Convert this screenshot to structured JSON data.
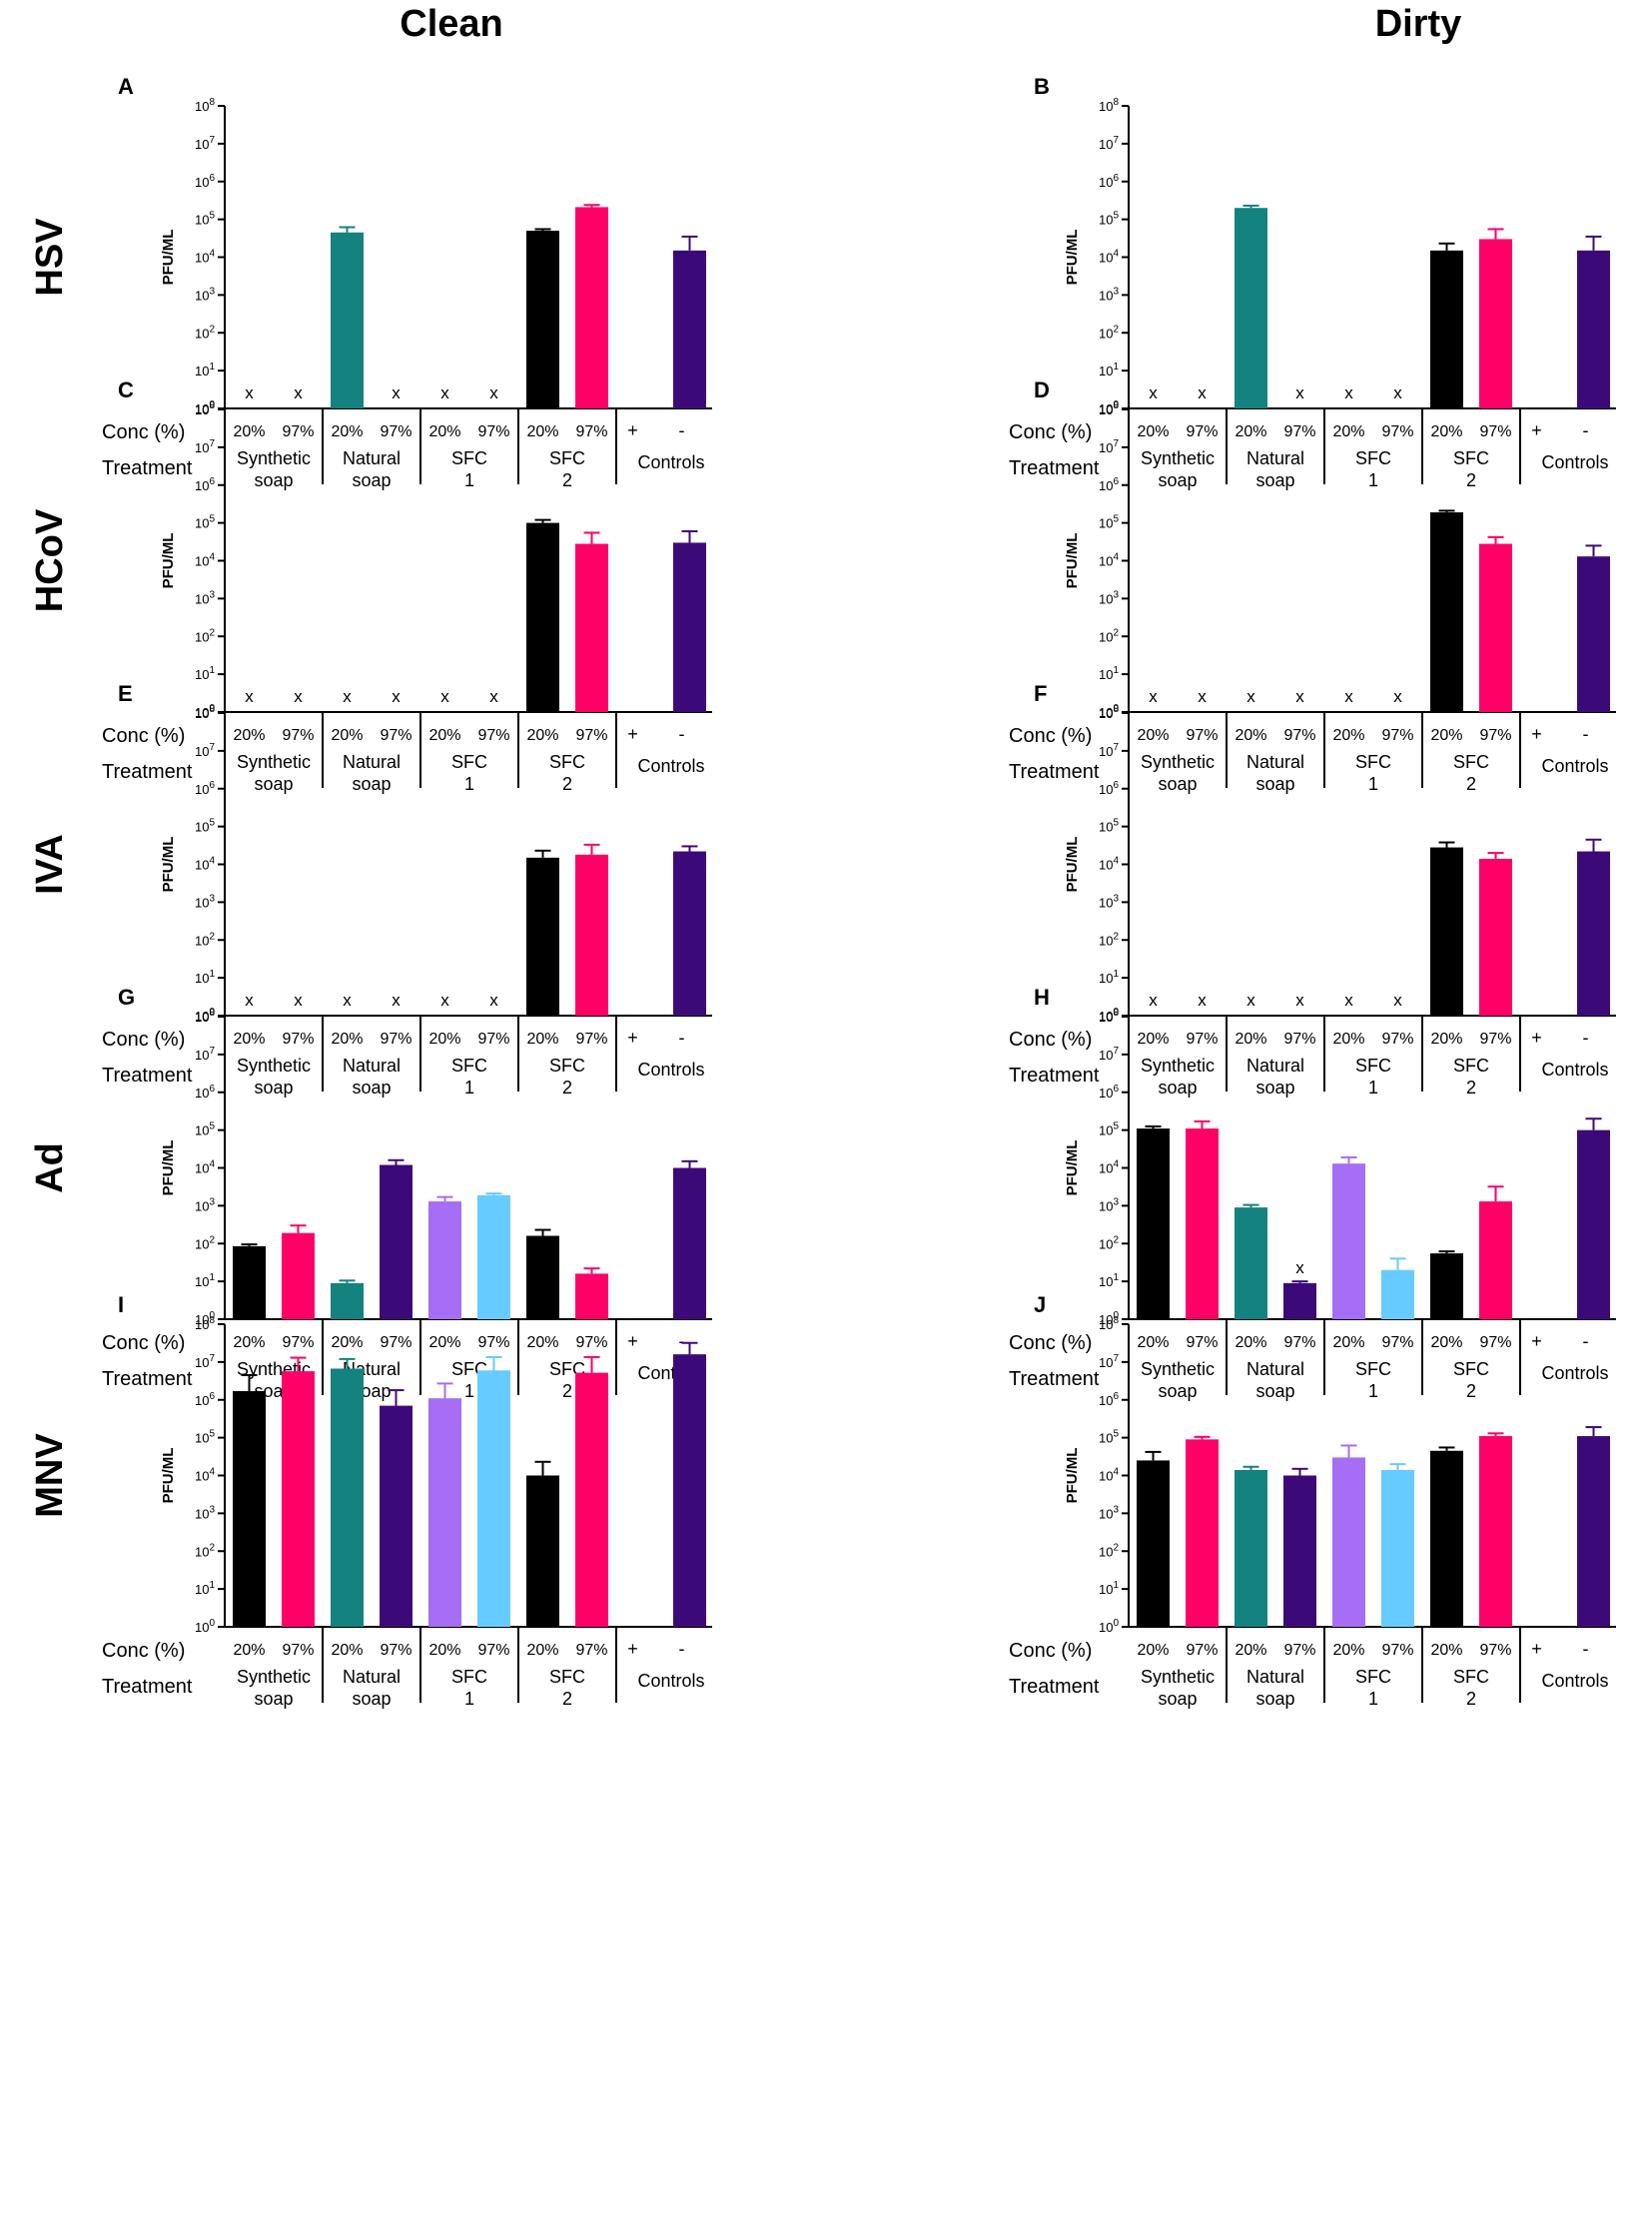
{
  "columns": [
    "Clean",
    "Dirty"
  ],
  "rows": [
    "HSV",
    "HCoV",
    "IVA",
    "Ad",
    "MNV"
  ],
  "row_labels_text": {
    "conc": "Conc (%)",
    "treatment": "Treatment"
  },
  "y_axis": {
    "label": "PFU/ML",
    "log_min": 0,
    "log_max": 8,
    "ticks": [
      "10^0",
      "10^1",
      "10^2",
      "10^3",
      "10^4",
      "10^5",
      "10^6",
      "10^7",
      "10^8"
    ]
  },
  "bar_groups": [
    {
      "conc": [
        "20%",
        "97%"
      ],
      "treatment_lines": [
        "Synthetic",
        "soap"
      ]
    },
    {
      "conc": [
        "20%",
        "97%"
      ],
      "treatment_lines": [
        "Natural",
        "soap"
      ]
    },
    {
      "conc": [
        "20%",
        "97%"
      ],
      "treatment_lines": [
        "SFC",
        "1"
      ]
    },
    {
      "conc": [
        "20%",
        "97%"
      ],
      "treatment_lines": [
        "SFC",
        "2"
      ]
    },
    {
      "conc": [
        "+",
        "-"
      ],
      "treatment_lines": [
        "Controls"
      ]
    }
  ],
  "colors": {
    "synthetic_20": "#000000",
    "synthetic_97": "#ff0066",
    "natural_20": "#14827e",
    "natural_97": "#3c0a78",
    "sfc1_20": "#a66ef5",
    "sfc1_97": "#66ccff",
    "sfc2_20": "#000000",
    "sfc2_97": "#ff0066",
    "pos_control": "#000000",
    "neg_control": "#3c0a78"
  },
  "not_detected_marker": "x",
  "chart_data": [
    {
      "panel": "A",
      "row": "HSV",
      "column": "Clean",
      "type": "bar",
      "categories": [
        "Synthetic soap 20%",
        "Synthetic soap 97%",
        "Natural soap 20%",
        "Natural soap 97%",
        "SFC 1 20%",
        "SFC 1 97%",
        "SFC 2 20%",
        "SFC 2 97%",
        "Controls +",
        "Controls -"
      ],
      "values": [
        null,
        null,
        45000,
        null,
        null,
        null,
        50000,
        210000,
        null,
        15000
      ],
      "error_upper": [
        null,
        null,
        62000,
        null,
        null,
        null,
        55000,
        240000,
        null,
        35000
      ],
      "xlabel": "",
      "ylabel": "PFU/ML",
      "ylim": [
        1,
        100000000
      ],
      "yscale": "log"
    },
    {
      "panel": "B",
      "row": "HSV",
      "column": "Dirty",
      "type": "bar",
      "categories": [
        "Synthetic soap 20%",
        "Synthetic soap 97%",
        "Natural soap 20%",
        "Natural soap 97%",
        "SFC 1 20%",
        "SFC 1 97%",
        "SFC 2 20%",
        "SFC 2 97%",
        "Controls +",
        "Controls -"
      ],
      "values": [
        null,
        null,
        200000,
        null,
        null,
        null,
        15000,
        30000,
        null,
        15000
      ],
      "error_upper": [
        null,
        null,
        230000,
        null,
        null,
        null,
        23000,
        55000,
        null,
        35000
      ],
      "xlabel": "",
      "ylabel": "PFU/ML",
      "ylim": [
        1,
        100000000
      ],
      "yscale": "log"
    },
    {
      "panel": "C",
      "row": "HCoV",
      "column": "Clean",
      "type": "bar",
      "categories": [
        "Synthetic soap 20%",
        "Synthetic soap 97%",
        "Natural soap 20%",
        "Natural soap 97%",
        "SFC 1 20%",
        "SFC 1 97%",
        "SFC 2 20%",
        "SFC 2 97%",
        "Controls +",
        "Controls -"
      ],
      "values": [
        null,
        null,
        null,
        null,
        null,
        null,
        100000,
        28000,
        null,
        30000
      ],
      "error_upper": [
        null,
        null,
        null,
        null,
        null,
        null,
        120000,
        55000,
        null,
        60000
      ],
      "xlabel": "",
      "ylabel": "PFU/ML",
      "ylim": [
        1,
        100000000
      ],
      "yscale": "log"
    },
    {
      "panel": "D",
      "row": "HCoV",
      "column": "Dirty",
      "type": "bar",
      "categories": [
        "Synthetic soap 20%",
        "Synthetic soap 97%",
        "Natural soap 20%",
        "Natural soap 97%",
        "SFC 1 20%",
        "SFC 1 97%",
        "SFC 2 20%",
        "SFC 2 97%",
        "Controls +",
        "Controls -"
      ],
      "values": [
        null,
        null,
        null,
        null,
        null,
        null,
        190000,
        28000,
        null,
        13000
      ],
      "error_upper": [
        null,
        null,
        null,
        null,
        null,
        null,
        210000,
        42000,
        null,
        25000
      ],
      "xlabel": "",
      "ylabel": "PFU/ML",
      "ylim": [
        1,
        100000000
      ],
      "yscale": "log"
    },
    {
      "panel": "E",
      "row": "IVA",
      "column": "Clean",
      "type": "bar",
      "categories": [
        "Synthetic soap 20%",
        "Synthetic soap 97%",
        "Natural soap 20%",
        "Natural soap 97%",
        "SFC 1 20%",
        "SFC 1 97%",
        "SFC 2 20%",
        "SFC 2 97%",
        "Controls +",
        "Controls -"
      ],
      "values": [
        null,
        null,
        null,
        null,
        null,
        null,
        15000,
        18000,
        null,
        22000
      ],
      "error_upper": [
        null,
        null,
        null,
        null,
        null,
        null,
        23000,
        33000,
        null,
        30000
      ],
      "xlabel": "",
      "ylabel": "PFU/ML",
      "ylim": [
        1,
        100000000
      ],
      "yscale": "log"
    },
    {
      "panel": "F",
      "row": "IVA",
      "column": "Dirty",
      "type": "bar",
      "categories": [
        "Synthetic soap 20%",
        "Synthetic soap 97%",
        "Natural soap 20%",
        "Natural soap 97%",
        "SFC 1 20%",
        "SFC 1 97%",
        "SFC 2 20%",
        "SFC 2 97%",
        "Controls +",
        "Controls -"
      ],
      "values": [
        null,
        null,
        null,
        null,
        null,
        null,
        28000,
        14000,
        null,
        22000
      ],
      "error_upper": [
        null,
        null,
        null,
        null,
        null,
        null,
        38000,
        20000,
        null,
        45000
      ],
      "xlabel": "",
      "ylabel": "PFU/ML",
      "ylim": [
        1,
        100000000
      ],
      "yscale": "log"
    },
    {
      "panel": "G",
      "row": "Ad",
      "column": "Clean",
      "type": "bar",
      "categories": [
        "Synthetic soap 20%",
        "Synthetic soap 97%",
        "Natural soap 20%",
        "Natural soap 97%",
        "SFC 1 20%",
        "SFC 1 97%",
        "SFC 2 20%",
        "SFC 2 97%",
        "Controls +",
        "Controls -"
      ],
      "values": [
        85,
        190,
        9,
        12000,
        1300,
        1900,
        160,
        16,
        null,
        10000
      ],
      "error_upper": [
        95,
        300,
        10.5,
        16000,
        1700,
        2100,
        230,
        22,
        null,
        15000
      ],
      "xlabel": "",
      "ylabel": "PFU/ML",
      "ylim": [
        1,
        100000000
      ],
      "yscale": "log"
    },
    {
      "panel": "H",
      "row": "Ad",
      "column": "Dirty",
      "type": "bar",
      "categories": [
        "Synthetic soap 20%",
        "Synthetic soap 97%",
        "Natural soap 20%",
        "Natural soap 97%",
        "SFC 1 20%",
        "SFC 1 97%",
        "SFC 2 20%",
        "SFC 2 97%",
        "Controls +",
        "Controls -"
      ],
      "values": [
        110000,
        110000,
        900,
        9,
        13000,
        20,
        55,
        1300,
        null,
        100000
      ],
      "error_upper": [
        125000,
        170000,
        1050,
        10,
        19000,
        40,
        62,
        3200,
        null,
        200000
      ],
      "xlabel": "",
      "ylabel": "PFU/ML",
      "ylim": [
        1,
        100000000
      ],
      "yscale": "log"
    },
    {
      "panel": "I",
      "row": "MNV",
      "column": "Clean",
      "type": "bar",
      "categories": [
        "Synthetic soap 20%",
        "Synthetic soap 97%",
        "Natural soap 20%",
        "Natural soap 97%",
        "SFC 1 20%",
        "SFC 1 97%",
        "SFC 2 20%",
        "SFC 2 97%",
        "Controls +",
        "Controls -"
      ],
      "values": [
        1700000,
        5700000,
        6700000,
        700000,
        1100000,
        6000000,
        10000,
        5200000,
        null,
        16000000
      ],
      "error_upper": [
        4500000,
        13000000,
        12000000,
        1800000,
        2700000,
        13500000,
        23000,
        13500000,
        null,
        32000000
      ],
      "xlabel": "",
      "ylabel": "PFU/ML",
      "ylim": [
        1,
        100000000
      ],
      "yscale": "log"
    },
    {
      "panel": "J",
      "row": "MNV",
      "column": "Dirty",
      "type": "bar",
      "categories": [
        "Synthetic soap 20%",
        "Synthetic soap 97%",
        "Natural soap 20%",
        "Natural soap 97%",
        "SFC 1 20%",
        "SFC 1 97%",
        "SFC 2 20%",
        "SFC 2 97%",
        "Controls +",
        "Controls -"
      ],
      "values": [
        25000,
        90000,
        14000,
        10000,
        30000,
        14000,
        45000,
        110000,
        null,
        110000
      ],
      "error_upper": [
        42000,
        105000,
        17000,
        15000,
        62000,
        20000,
        55000,
        130000,
        null,
        190000
      ],
      "xlabel": "",
      "ylabel": "PFU/ML",
      "ylim": [
        1,
        100000000
      ],
      "yscale": "log"
    }
  ]
}
